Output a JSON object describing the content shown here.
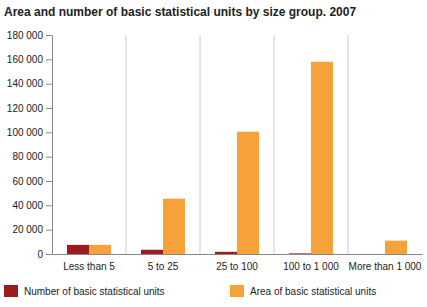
{
  "chart_data": {
    "type": "bar",
    "title": "Area and number of basic statistical units by size group. 2007",
    "categories": [
      "Less than 5",
      "5 to 25",
      "25 to 100",
      "100 to 1 000",
      "More than 1 000"
    ],
    "series": [
      {
        "name": "Number of basic statistical units",
        "color": "#9b1b1f",
        "values": [
          7500,
          3500,
          1800,
          500,
          10
        ]
      },
      {
        "name": "Area of basic statistical units",
        "color": "#f7a13a",
        "values": [
          7500,
          45500,
          100500,
          158000,
          11000
        ]
      }
    ],
    "ylim": [
      0,
      180000
    ],
    "yticks": [
      0,
      {
        "value": 20000,
        "label": "20 000"
      },
      {
        "value": 40000,
        "label": "40 000"
      },
      {
        "value": 60000,
        "label": "60 000"
      },
      {
        "value": 80000,
        "label": "80 000"
      },
      {
        "value": 100000,
        "label": "100 000"
      },
      {
        "value": 120000,
        "label": "120 000"
      },
      {
        "value": 140000,
        "label": "140 000"
      },
      {
        "value": 160000,
        "label": "160 000"
      },
      {
        "value": 180000,
        "label": "180 000"
      }
    ],
    "legend": "bottom"
  }
}
